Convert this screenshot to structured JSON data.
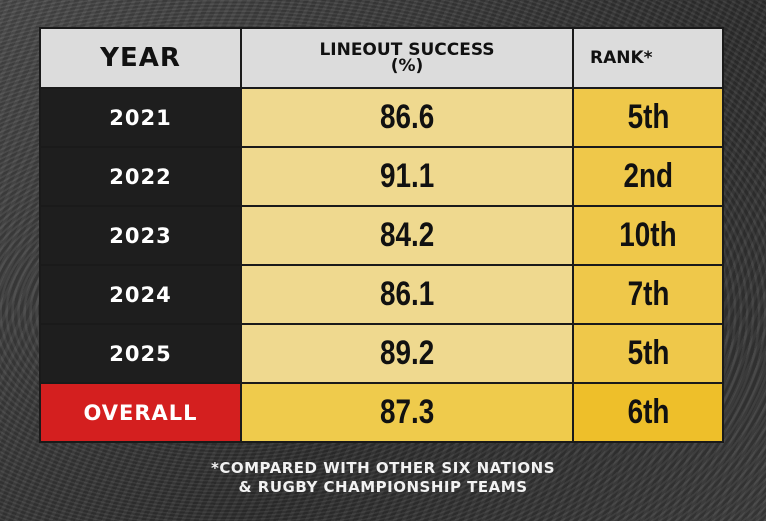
{
  "headers": {
    "year": "YEAR",
    "lineout_line1": "LINEOUT SUCCESS",
    "lineout_line2": "(%)",
    "rank": "RANK*"
  },
  "rows": [
    {
      "year": "2021",
      "pct": "86.6",
      "rank": "5th"
    },
    {
      "year": "2022",
      "pct": "91.1",
      "rank": "2nd"
    },
    {
      "year": "2023",
      "pct": "84.2",
      "rank": "10th"
    },
    {
      "year": "2024",
      "pct": "86.1",
      "rank": "7th"
    },
    {
      "year": "2025",
      "pct": "89.2",
      "rank": "5th"
    },
    {
      "year": "OVERALL",
      "pct": "87.3",
      "rank": "6th"
    }
  ],
  "footnote": {
    "line1": "*COMPARED WITH OTHER SIX NATIONS",
    "line2": "& RUGBY CHAMPIONSHIP TEAMS"
  },
  "colors": {
    "year_cell": "#1e1e1e",
    "overall_cell": "#d41f1f",
    "pct_cell": "#efd98f",
    "rank_cell": "#efc84a",
    "header_cell": "#dcdcdc"
  }
}
